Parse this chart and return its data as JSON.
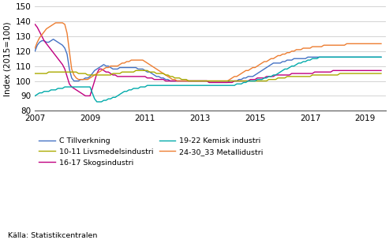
{
  "ylabel": "Index (2015=100)",
  "ylim": [
    80,
    150
  ],
  "yticks": [
    80,
    90,
    100,
    110,
    120,
    130,
    140,
    150
  ],
  "xlim_start": 2007.0,
  "xlim_end": 2019.75,
  "xticks": [
    2007,
    2009,
    2011,
    2013,
    2015,
    2017,
    2019
  ],
  "source": "Källa: Statistikcentralen",
  "n_months": 152,
  "start_year": 2007.0,
  "series": {
    "C Tillverkning": {
      "color": "#4472C4",
      "data": [
        120,
        124,
        126,
        127,
        127,
        126,
        126,
        127,
        128,
        127,
        126,
        125,
        124,
        122,
        118,
        108,
        102,
        100,
        100,
        100,
        101,
        101,
        102,
        102,
        103,
        105,
        107,
        108,
        109,
        110,
        111,
        110,
        110,
        109,
        108,
        108,
        108,
        109,
        109,
        109,
        109,
        109,
        109,
        109,
        109,
        108,
        108,
        108,
        107,
        106,
        106,
        105,
        104,
        103,
        103,
        102,
        102,
        101,
        101,
        100,
        100,
        100,
        100,
        100,
        100,
        100,
        100,
        100,
        100,
        100,
        100,
        100,
        100,
        100,
        100,
        100,
        99,
        99,
        99,
        99,
        99,
        99,
        99,
        99,
        99,
        100,
        100,
        100,
        100,
        101,
        101,
        102,
        102,
        103,
        103,
        103,
        104,
        105,
        106,
        107,
        108,
        109,
        110,
        111,
        112,
        112,
        112,
        112,
        113,
        113,
        114,
        114,
        114,
        115,
        115,
        115,
        115,
        115,
        115,
        116,
        116,
        116,
        116,
        116,
        116,
        116,
        116,
        116,
        116,
        116,
        116,
        116,
        116,
        116,
        116,
        116,
        116,
        116,
        116,
        116,
        116,
        116,
        116,
        116,
        116,
        116,
        116,
        116,
        116,
        116,
        116,
        116
      ]
    },
    "16-17 Skogsindustri": {
      "color": "#C00080",
      "data": [
        138,
        136,
        133,
        130,
        127,
        125,
        123,
        121,
        119,
        117,
        115,
        113,
        111,
        108,
        103,
        98,
        96,
        95,
        94,
        93,
        92,
        91,
        90,
        90,
        90,
        95,
        100,
        105,
        108,
        108,
        107,
        106,
        106,
        105,
        104,
        104,
        103,
        103,
        103,
        103,
        103,
        103,
        103,
        103,
        103,
        103,
        103,
        103,
        103,
        102,
        102,
        102,
        101,
        101,
        101,
        101,
        101,
        100,
        100,
        100,
        100,
        100,
        100,
        100,
        100,
        100,
        100,
        100,
        100,
        100,
        100,
        100,
        100,
        100,
        100,
        100,
        99,
        99,
        99,
        99,
        99,
        99,
        99,
        99,
        99,
        99,
        99,
        100,
        100,
        100,
        100,
        100,
        100,
        100,
        101,
        101,
        101,
        102,
        102,
        102,
        102,
        103,
        103,
        103,
        103,
        104,
        104,
        104,
        104,
        104,
        104,
        104,
        105,
        105,
        105,
        105,
        105,
        105,
        105,
        105,
        105,
        105,
        106,
        106,
        106,
        106,
        106,
        106,
        106,
        106,
        107,
        107,
        107,
        107,
        107,
        107,
        107,
        107,
        107,
        107,
        107,
        107,
        107,
        107,
        107,
        107,
        107,
        107,
        107,
        107,
        107,
        107
      ]
    },
    "24-30_33 Metallidustri": {
      "color": "#ED7D31",
      "data": [
        122,
        126,
        129,
        131,
        133,
        135,
        136,
        137,
        138,
        139,
        139,
        139,
        139,
        138,
        132,
        120,
        108,
        104,
        102,
        101,
        101,
        101,
        101,
        101,
        102,
        103,
        104,
        105,
        106,
        107,
        108,
        109,
        109,
        110,
        110,
        110,
        110,
        111,
        112,
        112,
        113,
        113,
        114,
        114,
        114,
        114,
        114,
        114,
        113,
        112,
        111,
        110,
        109,
        108,
        107,
        106,
        105,
        104,
        103,
        102,
        101,
        101,
        100,
        100,
        100,
        100,
        100,
        100,
        100,
        100,
        100,
        100,
        100,
        100,
        100,
        100,
        100,
        100,
        100,
        100,
        100,
        100,
        100,
        100,
        100,
        101,
        102,
        103,
        103,
        104,
        105,
        106,
        107,
        107,
        108,
        109,
        109,
        110,
        111,
        112,
        113,
        113,
        114,
        115,
        115,
        116,
        117,
        117,
        118,
        118,
        119,
        119,
        120,
        120,
        121,
        121,
        121,
        122,
        122,
        122,
        122,
        123,
        123,
        123,
        123,
        123,
        124,
        124,
        124,
        124,
        124,
        124,
        124,
        124,
        124,
        124,
        125,
        125,
        125,
        125,
        125,
        125,
        125,
        125,
        125,
        125,
        125,
        125,
        125,
        125,
        125,
        125
      ]
    },
    "10-11 Livsmedelsindustri": {
      "color": "#AAAA00",
      "data": [
        105,
        105,
        105,
        105,
        105,
        105,
        106,
        106,
        106,
        106,
        106,
        106,
        106,
        106,
        106,
        106,
        106,
        106,
        106,
        105,
        105,
        105,
        105,
        104,
        104,
        104,
        104,
        104,
        104,
        104,
        104,
        104,
        104,
        104,
        105,
        105,
        105,
        105,
        106,
        106,
        106,
        106,
        106,
        106,
        107,
        107,
        107,
        107,
        107,
        107,
        106,
        106,
        106,
        105,
        105,
        105,
        105,
        104,
        104,
        103,
        103,
        102,
        102,
        102,
        101,
        101,
        101,
        100,
        100,
        100,
        100,
        100,
        100,
        100,
        100,
        100,
        100,
        100,
        100,
        100,
        100,
        100,
        100,
        100,
        100,
        100,
        100,
        100,
        100,
        100,
        100,
        100,
        100,
        100,
        100,
        100,
        100,
        100,
        100,
        100,
        100,
        100,
        101,
        101,
        101,
        101,
        102,
        102,
        102,
        102,
        103,
        103,
        103,
        103,
        103,
        103,
        103,
        103,
        103,
        103,
        103,
        104,
        104,
        104,
        104,
        104,
        104,
        104,
        104,
        104,
        104,
        104,
        104,
        105,
        105,
        105,
        105,
        105,
        105,
        105,
        105,
        105,
        105,
        105,
        105,
        105,
        105,
        105,
        105,
        105,
        105,
        105
      ]
    },
    "19-22 Kemisk industri": {
      "color": "#00AAAA",
      "data": [
        90,
        91,
        92,
        92,
        93,
        93,
        93,
        94,
        94,
        94,
        95,
        95,
        95,
        96,
        96,
        96,
        96,
        96,
        96,
        96,
        96,
        96,
        96,
        96,
        96,
        92,
        88,
        86,
        86,
        86,
        87,
        87,
        88,
        88,
        89,
        89,
        90,
        91,
        92,
        93,
        93,
        94,
        94,
        95,
        95,
        95,
        96,
        96,
        96,
        97,
        97,
        97,
        97,
        97,
        97,
        97,
        97,
        97,
        97,
        97,
        97,
        97,
        97,
        97,
        97,
        97,
        97,
        97,
        97,
        97,
        97,
        97,
        97,
        97,
        97,
        97,
        97,
        97,
        97,
        97,
        97,
        97,
        97,
        97,
        97,
        97,
        97,
        97,
        98,
        98,
        98,
        99,
        99,
        100,
        100,
        100,
        100,
        101,
        101,
        101,
        102,
        102,
        103,
        103,
        104,
        104,
        105,
        106,
        107,
        108,
        108,
        109,
        110,
        110,
        111,
        112,
        112,
        113,
        113,
        114,
        114,
        115,
        115,
        115,
        116,
        116,
        116,
        116,
        116,
        116,
        116,
        116,
        116,
        116,
        116,
        116,
        116,
        116,
        116,
        116,
        116,
        116,
        116,
        116,
        116,
        116,
        116,
        116,
        116,
        116,
        116,
        116
      ]
    }
  },
  "legend_col1": [
    "C Tillverkning",
    "16-17 Skogsindustri",
    "24-30_33 Metallidustri"
  ],
  "legend_col2": [
    "10-11 Livsmedelsindustri",
    "19-22 Kemisk industri"
  ]
}
